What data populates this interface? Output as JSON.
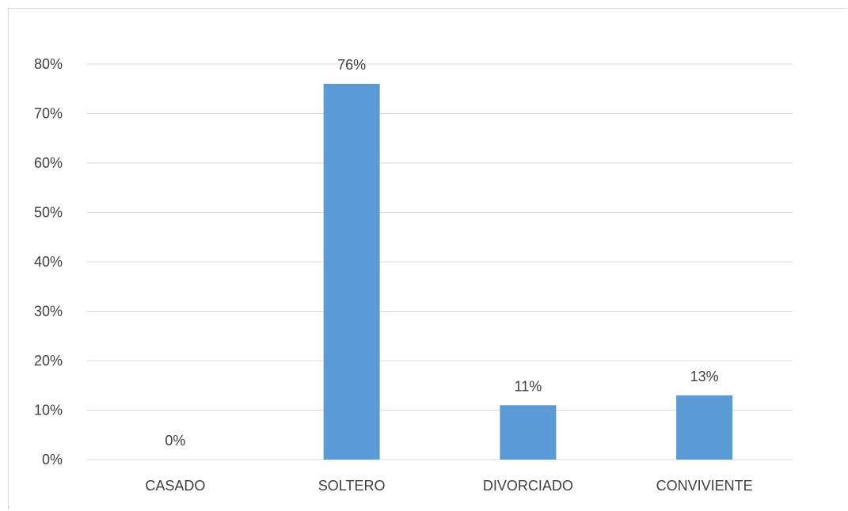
{
  "chart_data": {
    "type": "bar",
    "categories": [
      "CASADO",
      "SOLTERO",
      "DIVORCIADO",
      "CONVIVIENTE"
    ],
    "values": [
      0,
      76,
      11,
      13
    ],
    "data_labels": [
      "0%",
      "76%",
      "11%",
      "13%"
    ],
    "yticks": [
      "0%",
      "10%",
      "20%",
      "30%",
      "40%",
      "50%",
      "60%",
      "70%",
      "80%"
    ],
    "ylim": [
      0,
      80
    ],
    "grid": true,
    "legend": "none",
    "bar_color": "#5b9bd5",
    "grid_color": "#d9d9d9",
    "label_color": "#404040"
  }
}
